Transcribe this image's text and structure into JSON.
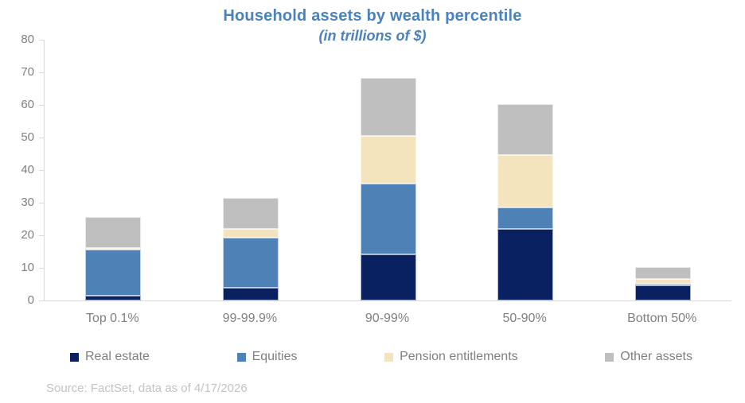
{
  "header": {
    "title": "Household assets by wealth percentile",
    "subtitle": "(in trillions of $)"
  },
  "chart_data": {
    "type": "bar",
    "stacked": true,
    "title": "Household assets by wealth percentile",
    "subtitle": "(in trillions of $)",
    "categories": [
      "Top 0.1%",
      "99-99.9%",
      "90-99%",
      "50-90%",
      "Bottom 50%"
    ],
    "series": [
      {
        "name": "Real estate",
        "color": "#0A2161",
        "values": [
          1.5,
          4.0,
          14.2,
          22.0,
          4.6
        ]
      },
      {
        "name": "Equities",
        "color": "#4E81B6",
        "values": [
          14.1,
          15.3,
          21.7,
          6.6,
          0.5
        ]
      },
      {
        "name": "Pension entitlements",
        "color": "#F3E4BE",
        "values": [
          0.6,
          2.6,
          14.6,
          16.1,
          1.4
        ]
      },
      {
        "name": "Other assets",
        "color": "#BFBFBF",
        "values": [
          9.4,
          9.5,
          17.7,
          15.6,
          3.8
        ]
      }
    ],
    "stack_totals": [
      25.6,
      31.4,
      68.2,
      60.3,
      10.3
    ],
    "xlabel": "",
    "ylabel": "",
    "ylim": [
      0,
      80
    ],
    "ytick_step": 10,
    "ytick_labels": [
      "0",
      "10",
      "20",
      "30",
      "40",
      "50",
      "60",
      "70",
      "80"
    ],
    "grid": false,
    "legend_position": "bottom"
  },
  "footer": {
    "source": "Source: FactSet, data as of 4/17/2026"
  },
  "colors": {
    "title": "#4A82BE",
    "axis_line": "#D9D9D9",
    "axis_text": "#7F7F7F",
    "footer_text": "#C3C3C3",
    "background": "#FFFFFF"
  }
}
